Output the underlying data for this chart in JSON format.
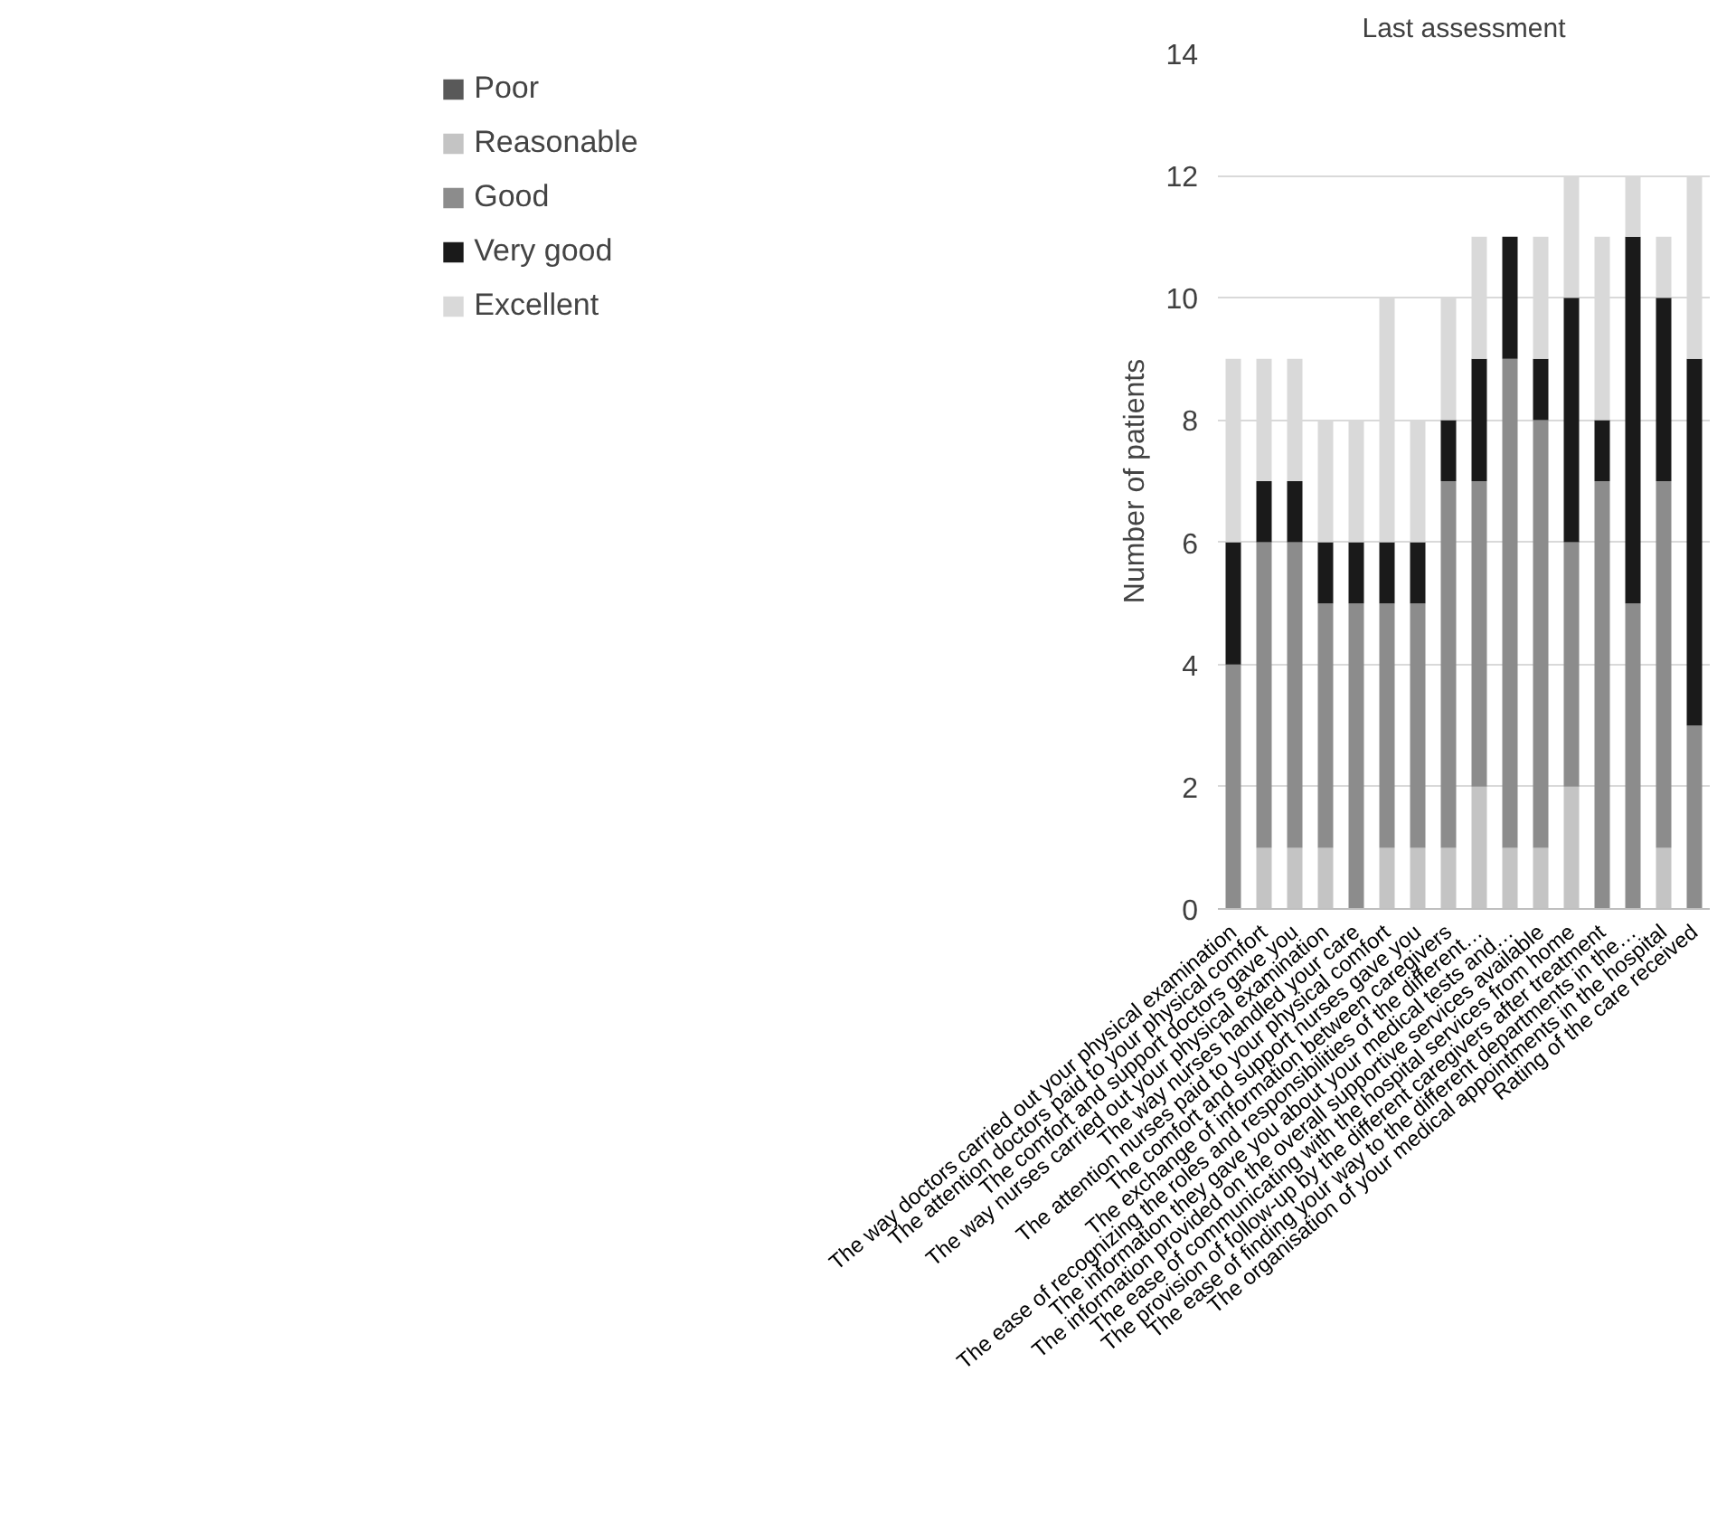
{
  "chart_data": {
    "type": "bar",
    "stacked": true,
    "title": "Last assessment",
    "ylabel": "Number of patients",
    "categories": [
      "The way doctors carried out your physical examination",
      "The attention doctors paid to your physical comfort",
      "The comfort and support doctors gave you",
      "The way nurses carried out your physical examination",
      "The way nurses handled your care",
      "The attention nurses paid to your physical comfort",
      "The comfort and support nurses gave you",
      "The exchange of information between caregivers",
      "The ease of recognizing the roles and responsibilities of the different…",
      "The information they gave you about your medical tests and…",
      "The information provided on the overall supportive services available",
      "The ease of communicating with the hospital services from home",
      "The provision of follow-up by the different caregivers after treatment",
      "The ease of finding your way to the different departments in the…",
      "The organisation of your medical appointments in the hospital",
      "Rating of the care received"
    ],
    "series": [
      {
        "name": "Poor",
        "color": "#595959",
        "values": [
          0,
          0,
          0,
          0,
          0,
          0,
          0,
          0,
          0,
          0,
          0,
          0,
          0,
          0,
          0,
          0
        ]
      },
      {
        "name": "Reasonable",
        "color": "#c4c4c4",
        "values": [
          0,
          1,
          1,
          1,
          0,
          1,
          1,
          1,
          2,
          1,
          1,
          2,
          0,
          0,
          1,
          0
        ]
      },
      {
        "name": "Good",
        "color": "#8c8c8c",
        "values": [
          4,
          5,
          5,
          4,
          5,
          4,
          4,
          6,
          5,
          8,
          7,
          4,
          7,
          5,
          6,
          3
        ]
      },
      {
        "name": "Very good",
        "color": "#1a1a1a",
        "values": [
          2,
          1,
          1,
          1,
          1,
          1,
          1,
          1,
          2,
          2,
          1,
          4,
          1,
          6,
          3,
          6
        ]
      },
      {
        "name": "Excellent",
        "color": "#d9d9d9",
        "values": [
          3,
          2,
          2,
          2,
          2,
          4,
          2,
          2,
          2,
          0,
          2,
          2,
          3,
          1,
          1,
          3
        ]
      }
    ],
    "ylim": [
      0,
      14
    ],
    "yticks": [
      0,
      2,
      4,
      6,
      8,
      10,
      12,
      14
    ],
    "grid": "y",
    "legend": "left"
  }
}
